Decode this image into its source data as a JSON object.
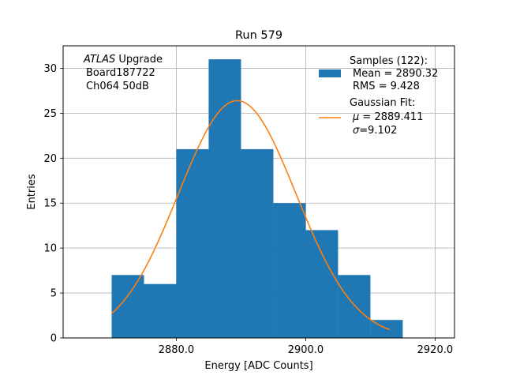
{
  "chart_data": {
    "type": "bar",
    "title": "Run 579",
    "xlabel": "Energy [ADC Counts]",
    "ylabel": "Entries",
    "xlim": [
      2862.5,
      2923.0
    ],
    "ylim": [
      0,
      32.5
    ],
    "xticks": [
      2880.0,
      2900.0,
      2920.0
    ],
    "xtick_labels": [
      "2880.0",
      "2900.0",
      "2920.0"
    ],
    "yticks": [
      0,
      5,
      10,
      15,
      20,
      25,
      30
    ],
    "ytick_labels": [
      "0",
      "5",
      "10",
      "15",
      "20",
      "25",
      "30"
    ],
    "grid": true,
    "histogram": {
      "name": "Samples",
      "color": "#1f77b4",
      "bin_edges": [
        2870.0,
        2875.0,
        2880.0,
        2885.0,
        2890.0,
        2895.0,
        2900.0,
        2905.0,
        2910.0,
        2915.0
      ],
      "counts": [
        7,
        6,
        21,
        31,
        21,
        15,
        12,
        7,
        2
      ]
    },
    "fit": {
      "name": "Gaussian Fit",
      "color": "#ff7f0e",
      "mu": 2889.411,
      "sigma": 9.102,
      "amplitude": 26.4,
      "x_range": [
        2870.0,
        2913.0
      ]
    },
    "annotation": {
      "line1_italic": "ATLAS",
      "line1_rest": " Upgrade",
      "line2": "Board187722",
      "line3": "Ch064 50dB"
    },
    "legend": {
      "placement": "top-right",
      "samples_title": "Samples (122):",
      "samples_mean": "Mean = 2890.32",
      "samples_rms": "RMS = 9.428",
      "fit_title": "Gaussian Fit:",
      "fit_mu_symbol": "μ",
      "fit_mu_value": " = 2889.411",
      "fit_sigma_symbol": "σ",
      "fit_sigma_value": "=9.102"
    }
  }
}
